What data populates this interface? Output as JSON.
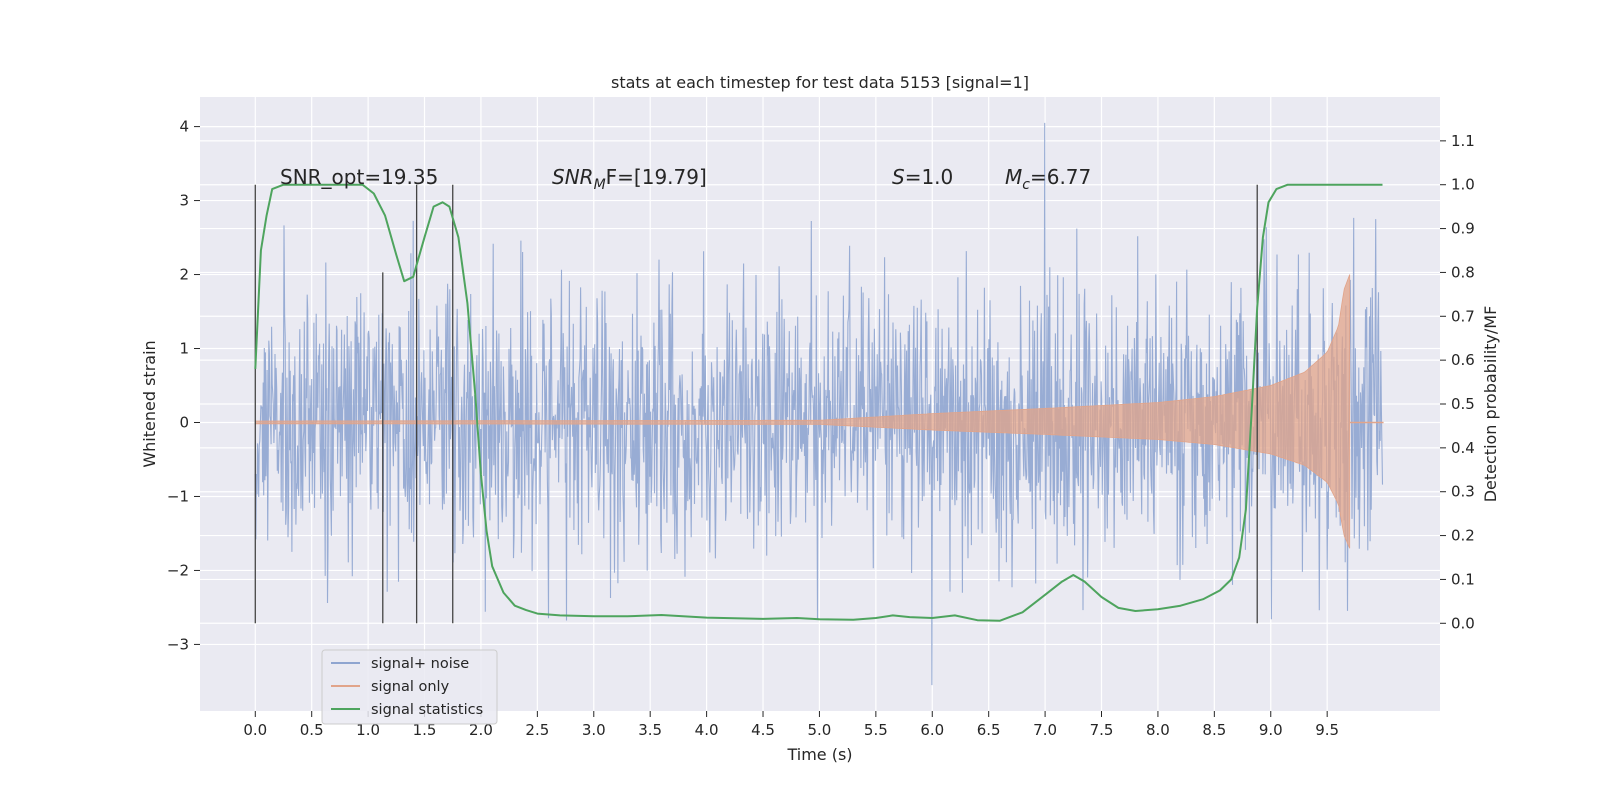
{
  "chart_data": {
    "type": "line",
    "title": "stats at each timestep for test data 5153 [signal=1]",
    "xlabel": "Time (s)",
    "ylabel_left": "Whitened strain",
    "ylabel_right": "Detection probability/MF",
    "xlim": [
      -0.49,
      10.5
    ],
    "ylim_left": [
      -3.9,
      4.4
    ],
    "ylim_right": [
      -0.2,
      1.2
    ],
    "grid": true,
    "legend_position": "lower-left",
    "x_ticks": [
      "0.0",
      "0.5",
      "1.0",
      "1.5",
      "2.0",
      "2.5",
      "3.0",
      "3.5",
      "4.0",
      "4.5",
      "5.0",
      "5.5",
      "6.0",
      "6.5",
      "7.0",
      "7.5",
      "8.0",
      "8.5",
      "9.0",
      "9.5"
    ],
    "y_left_ticks": [
      "−3",
      "−2",
      "−1",
      "0",
      "1",
      "2",
      "3",
      "4"
    ],
    "y_right_ticks": [
      "0.0",
      "0.1",
      "0.2",
      "0.3",
      "0.4",
      "0.5",
      "0.6",
      "0.7",
      "0.8",
      "0.9",
      "1.0",
      "1.1"
    ],
    "annotations": {
      "snr_opt": "SNR_opt=19.35",
      "snr_mf_main": "SNR",
      "snr_mf_sub": "M",
      "snr_mf_rest": "F=[19.79]",
      "s_main": "S",
      "s_rest": "=1.0",
      "mc_main": "M",
      "mc_sub": "c",
      "mc_rest": "=6.77"
    },
    "series": [
      {
        "name": "signal+ noise",
        "color": "#8fa5d0",
        "description_kind": "noisy strain",
        "x_range": [
          0.0,
          9.99
        ],
        "approx_envelope": [
          -2.7,
          2.9
        ],
        "peak_values": {
          "max": 4.05,
          "min": -3.55
        }
      },
      {
        "name": "signal only",
        "color": "#e1a48a",
        "x_range": [
          0.0,
          9.7
        ],
        "envelope": {
          "t": [
            0,
            5.0,
            6.0,
            7.0,
            7.5,
            8.0,
            8.5,
            9.0,
            9.3,
            9.5,
            9.6,
            9.65,
            9.7
          ],
          "amp": [
            0.02,
            0.03,
            0.12,
            0.19,
            0.23,
            0.27,
            0.35,
            0.5,
            0.68,
            0.95,
            1.3,
            1.8,
            2.0
          ]
        }
      },
      {
        "name": "signal statistics",
        "color": "#4ea45e",
        "x": [
          0.0,
          0.05,
          0.1,
          0.15,
          0.25,
          0.35,
          0.5,
          0.7,
          0.85,
          0.95,
          1.05,
          1.15,
          1.25,
          1.32,
          1.4,
          1.5,
          1.58,
          1.66,
          1.72,
          1.8,
          1.88,
          1.95,
          2.0,
          2.05,
          2.1,
          2.2,
          2.3,
          2.4,
          2.5,
          2.7,
          3.0,
          3.3,
          3.6,
          4.0,
          4.5,
          4.8,
          5.0,
          5.3,
          5.5,
          5.65,
          5.8,
          6.0,
          6.2,
          6.4,
          6.6,
          6.8,
          7.0,
          7.15,
          7.25,
          7.35,
          7.5,
          7.65,
          7.8,
          8.0,
          8.2,
          8.4,
          8.55,
          8.65,
          8.72,
          8.78,
          8.83,
          8.88,
          8.93,
          8.98,
          9.05,
          9.15,
          9.3,
          9.5,
          9.7,
          9.99
        ],
        "y": [
          0.58,
          0.85,
          0.93,
          0.99,
          1.0,
          1.0,
          1.0,
          1.0,
          1.0,
          1.0,
          0.98,
          0.93,
          0.84,
          0.78,
          0.79,
          0.88,
          0.95,
          0.96,
          0.95,
          0.88,
          0.73,
          0.52,
          0.34,
          0.21,
          0.13,
          0.07,
          0.04,
          0.03,
          0.022,
          0.018,
          0.016,
          0.016,
          0.019,
          0.013,
          0.01,
          0.012,
          0.009,
          0.008,
          0.012,
          0.018,
          0.014,
          0.012,
          0.018,
          0.007,
          0.006,
          0.025,
          0.065,
          0.095,
          0.11,
          0.095,
          0.06,
          0.035,
          0.028,
          0.032,
          0.04,
          0.055,
          0.075,
          0.1,
          0.15,
          0.26,
          0.48,
          0.72,
          0.88,
          0.96,
          0.99,
          1.0,
          1.0,
          1.0,
          1.0,
          1.0
        ]
      }
    ],
    "vertical_markers": [
      {
        "x": 0.0,
        "ymin": 0.0,
        "ymax": 1.0
      },
      {
        "x": 1.13,
        "ymin": 0.0,
        "ymax": 0.8
      },
      {
        "x": 1.43,
        "ymin": 0.0,
        "ymax": 1.0
      },
      {
        "x": 1.75,
        "ymin": 0.0,
        "ymax": 1.0
      },
      {
        "x": 8.88,
        "ymin": 0.0,
        "ymax": 1.0
      }
    ]
  }
}
